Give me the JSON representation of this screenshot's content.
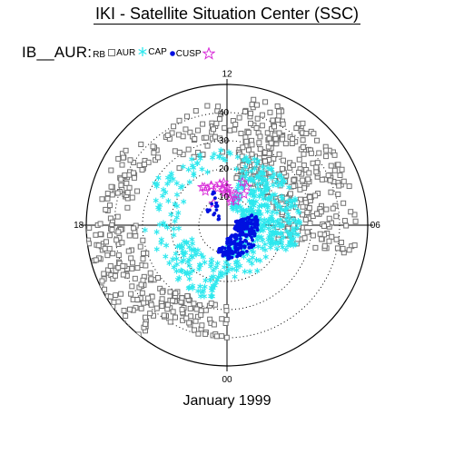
{
  "header": {
    "title": "IKI - Satellite Situation Center (SSC)"
  },
  "legend": {
    "prefix": "IB__AUR:",
    "items": [
      {
        "label": "RB",
        "marker": "none"
      },
      {
        "label": "AUR",
        "marker": "open-square",
        "color": "#707070"
      },
      {
        "label": "CAP",
        "marker": "asterisk",
        "color": "#2ee8ee"
      },
      {
        "label": "CUSP",
        "marker": "star",
        "color": "#d82ad8"
      }
    ],
    "dot_marker_color": "#0010e0"
  },
  "footer": {
    "date": "January 1999"
  },
  "chart_data": {
    "type": "scatter",
    "projection": "polar",
    "angular_axis": {
      "quantity": "magnetic local time",
      "tick_labels": [
        {
          "label": "12",
          "mlt": 12
        },
        {
          "label": "18",
          "mlt": 18
        },
        {
          "label": "00",
          "mlt": 0
        },
        {
          "label": "06",
          "mlt": 6
        }
      ]
    },
    "radial_axis": {
      "quantity": "colatitude",
      "max": 50,
      "dotted_rings": [
        10,
        20,
        30,
        40
      ],
      "outer_ring": 50,
      "tick_labels": [
        "10",
        "20",
        "30",
        "40"
      ]
    },
    "series": [
      {
        "name": "AUR",
        "marker": "open-square",
        "color": "#707070",
        "regions": [
          {
            "mlt_range": [
              5.0,
              11.4
            ],
            "colat_range": [
              17,
              46
            ],
            "count": 330
          },
          {
            "mlt_range": [
              11.4,
              15.0
            ],
            "colat_range": [
              26,
              43
            ],
            "count": 55
          },
          {
            "mlt_range": [
              15.0,
              18.0
            ],
            "colat_range": [
              34,
              46
            ],
            "count": 60
          },
          {
            "mlt_range": [
              18.0,
              21.5
            ],
            "colat_range": [
              30,
              58
            ],
            "count": 170
          },
          {
            "mlt_range": [
              21.5,
              24.0
            ],
            "colat_range": [
              28,
              40
            ],
            "count": 70
          }
        ]
      },
      {
        "name": "CAP",
        "marker": "asterisk",
        "color": "#2ee8ee",
        "regions": [
          {
            "mlt_range": [
              4.5,
              11.0
            ],
            "colat_range": [
              6,
              26
            ],
            "count": 300
          },
          {
            "mlt_range": [
              11.0,
              14.5
            ],
            "colat_range": [
              20,
              27
            ],
            "count": 25
          },
          {
            "mlt_range": [
              14.5,
              19.0
            ],
            "colat_range": [
              17,
              30
            ],
            "count": 40
          },
          {
            "mlt_range": [
              19.0,
              23.5
            ],
            "colat_range": [
              13,
              27
            ],
            "count": 90
          },
          {
            "mlt_range": [
              23.5,
              24.0
            ],
            "colat_range": [
              8,
              20
            ],
            "count": 10
          },
          {
            "mlt_range": [
              0.0,
              4.5
            ],
            "colat_range": [
              6,
              20
            ],
            "count": 70
          }
        ]
      },
      {
        "name": "CUSP",
        "marker": "star",
        "color": "#d82ad8",
        "regions": [
          {
            "mlt_range": [
              9.8,
              14.2
            ],
            "colat_range": [
              8,
              17
            ],
            "count": 22
          }
        ]
      },
      {
        "name": "",
        "marker": "dot",
        "color": "#0010e0",
        "regions": [
          {
            "mlt_range": [
              4.3,
              7.5
            ],
            "colat_range": [
              3,
              11
            ],
            "count": 120
          },
          {
            "mlt_range": [
              0.0,
              4.3
            ],
            "colat_range": [
              4,
              12
            ],
            "count": 110
          },
          {
            "mlt_range": [
              22.8,
              24.0
            ],
            "colat_range": [
              8,
              11
            ],
            "count": 25
          },
          {
            "mlt_range": [
              13.0,
              16.0
            ],
            "colat_range": [
              3,
              13
            ],
            "count": 18
          }
        ]
      }
    ]
  }
}
